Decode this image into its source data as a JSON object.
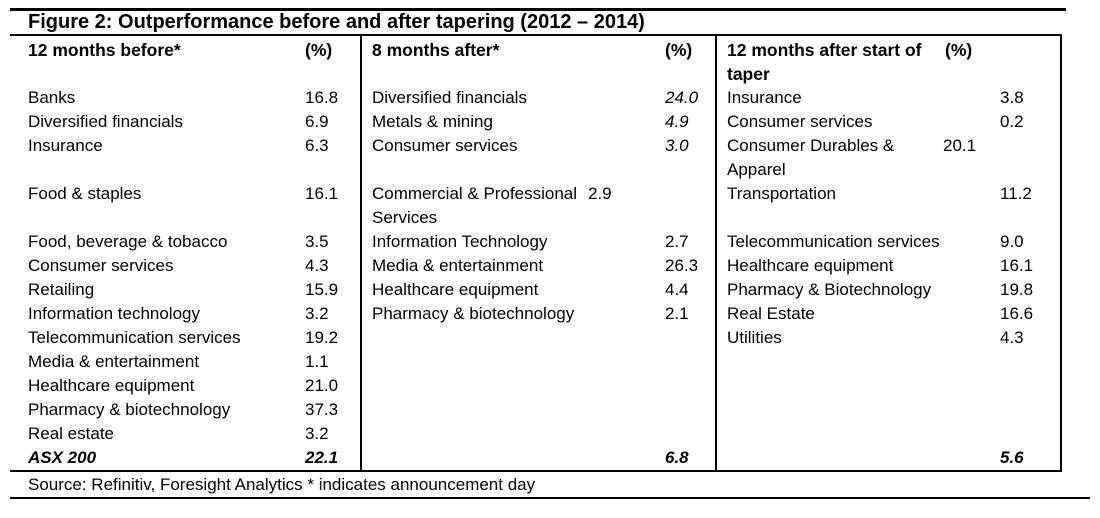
{
  "title": "Figure 2: Outperformance before and after tapering (2012 – 2014)",
  "source": "Source: Refinitiv, Foresight Analytics * indicates announcement day",
  "chart_data": {
    "type": "table",
    "title": "Outperformance before and after tapering (2012 – 2014)",
    "unit": "%",
    "columns": [
      {
        "header": "12 months before*",
        "pct_header": "(%)",
        "rows": [
          {
            "label": "Banks",
            "value": "16.8"
          },
          {
            "label": "Diversified financials",
            "value": "6.9"
          },
          {
            "label": "Insurance",
            "value": "6.3"
          },
          {
            "blank": true
          },
          {
            "label": "Food & staples",
            "value": "16.1"
          },
          {
            "blank": true
          },
          {
            "label": "Food, beverage & tobacco",
            "value": "3.5"
          },
          {
            "label": "Consumer services",
            "value": "4.3"
          },
          {
            "label": "Retailing",
            "value": "15.9"
          },
          {
            "label": "Information technology",
            "value": "3.2"
          },
          {
            "label": "Telecommunication services",
            "value": "19.2"
          },
          {
            "label": "Media & entertainment",
            "value": "1.1"
          },
          {
            "label": "Healthcare equipment",
            "value": "21.0"
          },
          {
            "label": "Pharmacy & biotechnology",
            "value": "37.3"
          },
          {
            "label": "Real estate",
            "value": "3.2"
          },
          {
            "label": "ASX 200",
            "value": "22.1",
            "total": true
          }
        ]
      },
      {
        "header": "8 months after*",
        "pct_header": "(%)",
        "rows": [
          {
            "label": "Diversified financials",
            "value": "24.0",
            "italic_value": true
          },
          {
            "label": "Metals & mining",
            "value": "4.9",
            "italic_value": true
          },
          {
            "label": "Consumer services",
            "value": "3.0",
            "italic_value": true
          },
          {
            "blank": true
          },
          {
            "label": "Commercial & Professional Services",
            "value": "2.9",
            "lines": 2
          },
          {
            "label": "Information Technology",
            "value": "2.7"
          },
          {
            "label": "Media & entertainment",
            "value": "26.3"
          },
          {
            "label": "Healthcare equipment",
            "value": "4.4"
          },
          {
            "label": "Pharmacy & biotechnology",
            "value": "2.1"
          },
          {
            "blank": true
          },
          {
            "blank": true
          },
          {
            "blank": true
          },
          {
            "blank": true
          },
          {
            "blank": true
          },
          {
            "label": "",
            "value": "6.8",
            "total": true
          }
        ]
      },
      {
        "header": "12 months after start of taper",
        "pct_header": "(%)",
        "rows": [
          {
            "label": "Insurance",
            "value": "3.8"
          },
          {
            "label": "Consumer services",
            "value": "0.2"
          },
          {
            "label": "Consumer Durables & Apparel",
            "value": "20.1",
            "lines": 2
          },
          {
            "label": "Transportation",
            "value": "11.2"
          },
          {
            "blank": true
          },
          {
            "label": "Telecommunication services",
            "value": "9.0"
          },
          {
            "label": "Healthcare equipment",
            "value": "16.1"
          },
          {
            "label": "Pharmacy & Biotechnology",
            "value": "19.8"
          },
          {
            "label": "Real Estate",
            "value": "16.6"
          },
          {
            "label": "Utilities",
            "value": "4.3"
          },
          {
            "blank": true
          },
          {
            "blank": true
          },
          {
            "blank": true
          },
          {
            "blank": true
          },
          {
            "label": "",
            "value": "5.6",
            "total": true
          }
        ]
      }
    ]
  }
}
